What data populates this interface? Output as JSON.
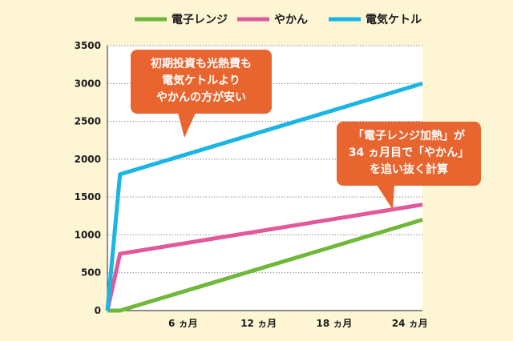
{
  "chart_data": {
    "type": "line",
    "x_ticks": [
      "6 ヵ月",
      "12 ヵ月",
      "18 ヵ月",
      "24 ヵ月"
    ],
    "y_ticks": [
      0,
      500,
      1000,
      1500,
      2000,
      2500,
      3000,
      3500
    ],
    "ylim": [
      0,
      3500
    ],
    "xlim": [
      0,
      25
    ],
    "grid": "horizontal",
    "legend_position": "top",
    "series": [
      {
        "name": "電子レンジ",
        "color": "#6fb83a",
        "points": [
          [
            0,
            0
          ],
          [
            1,
            0
          ],
          [
            25,
            1200
          ]
        ]
      },
      {
        "name": "やかん",
        "color": "#e05a9a",
        "points": [
          [
            0,
            0
          ],
          [
            1,
            750
          ],
          [
            25,
            1400
          ]
        ]
      },
      {
        "name": "電気ケトル",
        "color": "#1ab5e3",
        "points": [
          [
            0,
            0
          ],
          [
            1,
            1800
          ],
          [
            25,
            3000
          ]
        ]
      }
    ],
    "annotations": [
      {
        "lines": [
          "初期投資も光熱費も",
          "電気ケトルより",
          "やかんの方が安い"
        ],
        "color": "#e8652f"
      },
      {
        "lines": [
          "「電子レンジ加熱」が",
          "34 ヵ月目で「やかん」",
          "を追い抜く計算"
        ],
        "color": "#e8652f"
      }
    ]
  }
}
